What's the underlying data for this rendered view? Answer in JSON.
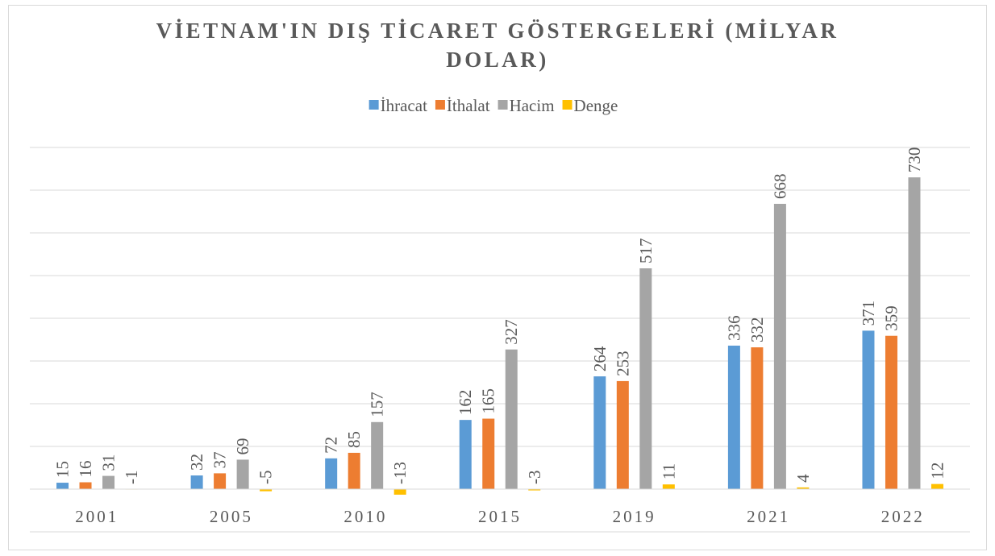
{
  "chart_data": {
    "type": "bar",
    "title": "VİETNAM'IN DIŞ TİCARET GÖSTERGELERİ (MİLYAR DOLAR)",
    "categories": [
      "2001",
      "2005",
      "2010",
      "2015",
      "2019",
      "2021",
      "2022"
    ],
    "series": [
      {
        "name": "İhracat",
        "color": "#5b9bd5",
        "values": [
          15,
          32,
          72,
          162,
          264,
          336,
          371
        ]
      },
      {
        "name": "İthalat",
        "color": "#ed7d31",
        "values": [
          16,
          37,
          85,
          165,
          253,
          332,
          359
        ]
      },
      {
        "name": "Hacim",
        "color": "#a5a5a5",
        "values": [
          31,
          69,
          157,
          327,
          517,
          668,
          730
        ]
      },
      {
        "name": "Denge",
        "color": "#ffc000",
        "values": [
          -1,
          -5,
          -13,
          -3,
          11,
          4,
          12
        ]
      }
    ],
    "ylim": [
      -100,
      800
    ],
    "yticks": [
      -100,
      0,
      100,
      200,
      300,
      400,
      500,
      600,
      700,
      800
    ],
    "grid": true,
    "legend": "top"
  }
}
